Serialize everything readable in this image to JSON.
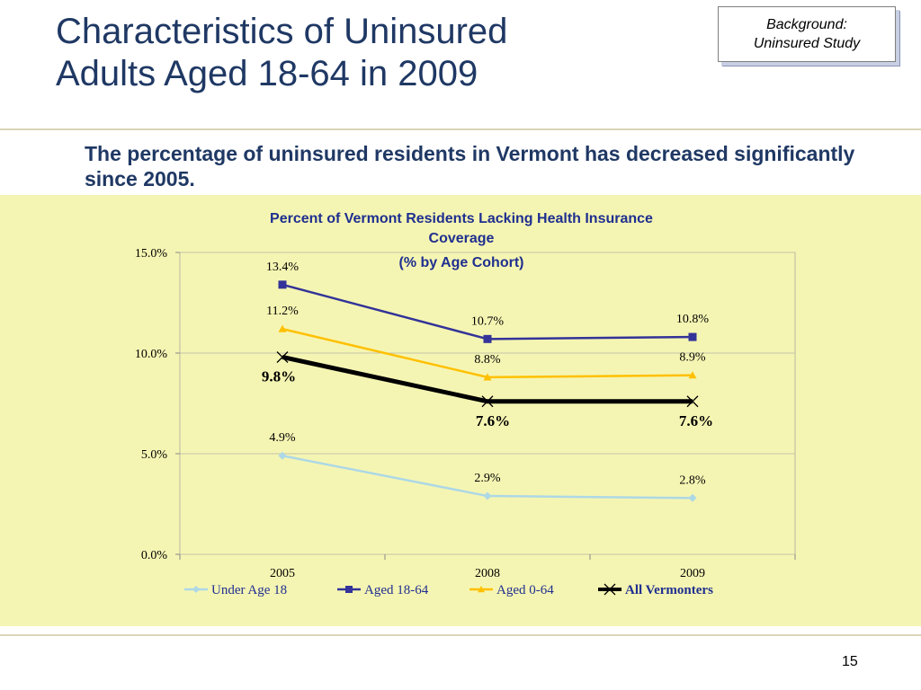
{
  "slide": {
    "title_line1": "Characteristics of Uninsured",
    "title_line2": "Adults Aged 18-64 in 2009",
    "tag_line1": "Background:",
    "tag_line2": "Uninsured Study",
    "subtitle": "The percentage of uninsured residents in Vermont has decreased significantly since 2005.",
    "page_number": "15"
  },
  "colors": {
    "title": "#1f3864",
    "panel_background": "#f5f5b3",
    "chart_title": "#1f2f8f"
  },
  "chart_data": {
    "type": "line",
    "title_lines": [
      "Percent of Vermont Residents Lacking Health Insurance",
      "Coverage",
      "(% by Age Cohort)"
    ],
    "categories": [
      "2005",
      "2008",
      "2009"
    ],
    "ylim": [
      0,
      15
    ],
    "yticks": [
      0,
      5,
      10,
      15
    ],
    "ytick_labels": [
      "0.0%",
      "5.0%",
      "10.0%",
      "15.0%"
    ],
    "grid": true,
    "legend_position": "bottom",
    "series": [
      {
        "name": "Under Age 18",
        "values": [
          4.9,
          2.9,
          2.8
        ],
        "labels": [
          "4.9%",
          "2.9%",
          "2.8%"
        ],
        "color": "#add8e6",
        "marker": "diamond",
        "emphasis": false
      },
      {
        "name": "Aged 18-64",
        "values": [
          13.4,
          10.7,
          10.8
        ],
        "labels": [
          "13.4%",
          "10.7%",
          "10.8%"
        ],
        "color": "#333399",
        "marker": "square",
        "emphasis": false
      },
      {
        "name": "Aged 0-64",
        "values": [
          11.2,
          8.8,
          8.9
        ],
        "labels": [
          "11.2%",
          "8.8%",
          "8.9%"
        ],
        "color": "#ffc000",
        "marker": "triangle",
        "emphasis": false
      },
      {
        "name": "All Vermonters",
        "values": [
          9.8,
          7.6,
          7.6
        ],
        "labels": [
          "9.8%",
          "7.6%",
          "7.6%"
        ],
        "color": "#000000",
        "marker": "x",
        "emphasis": true
      }
    ]
  }
}
